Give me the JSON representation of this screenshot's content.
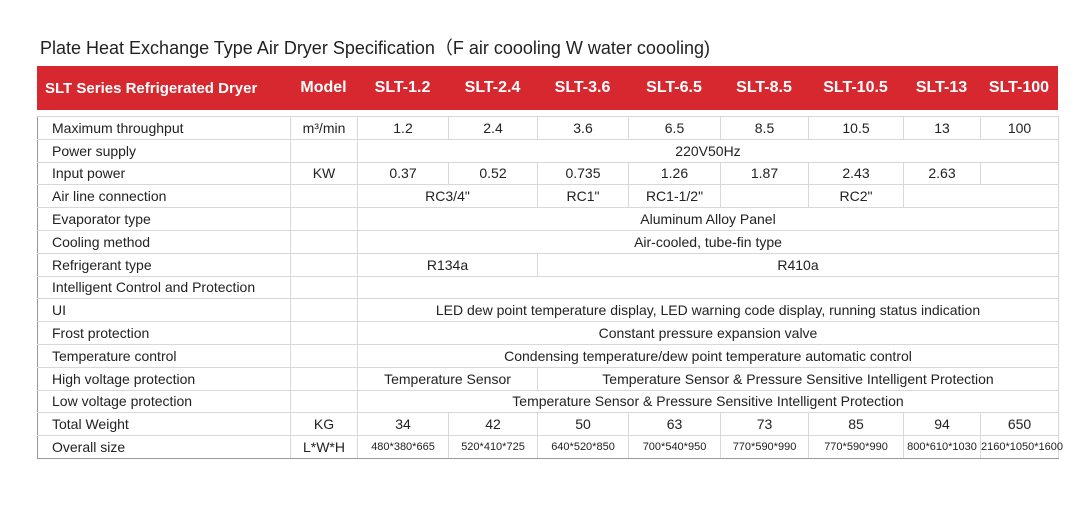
{
  "title": "Plate Heat Exchange Type Air Dryer Specification（F air coooling  W water coooling)",
  "header": {
    "series": "SLT Series Refrigerated Dryer",
    "model": "Model",
    "models": [
      "SLT-1.2",
      "SLT-2.4",
      "SLT-3.6",
      "SLT-6.5",
      "SLT-8.5",
      "SLT-10.5",
      "SLT-13",
      "SLT-100"
    ]
  },
  "rows": [
    {
      "label": "Maximum throughput",
      "unit": "m³/min",
      "cells": [
        "1.2",
        "2.4",
        "3.6",
        "6.5",
        "8.5",
        "10.5",
        "13",
        "100"
      ]
    },
    {
      "label": "Power supply",
      "cells": [
        "220V50Hz"
      ]
    },
    {
      "label": "Input power",
      "unit": "KW",
      "cells": [
        "0.37",
        "0.52",
        "0.735",
        "1.26",
        "1.87",
        "2.43",
        "2.63"
      ]
    },
    {
      "label": "Air line connection",
      "cells": [
        "RC3/4\"",
        "RC1\"",
        "RC1-1/2\"",
        "RC2\""
      ]
    },
    {
      "label": "Evaporator type",
      "cells": [
        "Aluminum Alloy Panel"
      ]
    },
    {
      "label": "Cooling method",
      "cells": [
        "Air-cooled, tube-fin type"
      ]
    },
    {
      "label": "Refrigerant type",
      "cells": [
        "R134a",
        "R410a"
      ]
    },
    {
      "label": "Intelligent Control and Protection",
      "cells": []
    },
    {
      "label": "UI",
      "cells": [
        "LED dew point temperature display, LED warning code display, running status indication"
      ]
    },
    {
      "label": "Frost protection",
      "cells": [
        "Constant pressure expansion valve"
      ]
    },
    {
      "label": "Temperature control",
      "cells": [
        "Condensing temperature/dew point temperature automatic control"
      ]
    },
    {
      "label": "High voltage protection",
      "cells": [
        "Temperature Sensor",
        "Temperature Sensor & Pressure Sensitive Intelligent Protection"
      ]
    },
    {
      "label": "Low voltage protection",
      "cells": [
        "Temperature Sensor & Pressure Sensitive Intelligent Protection"
      ]
    },
    {
      "label": "Total Weight",
      "unit": "KG",
      "cells": [
        "34",
        "42",
        "50",
        "63",
        "73",
        "85",
        "94",
        "650"
      ]
    },
    {
      "label": "Overall size",
      "unit": "L*W*H",
      "cells": [
        "480*380*665",
        "520*410*725",
        "640*520*850",
        "700*540*950",
        "770*590*990",
        "770*590*990",
        "800*610*1030",
        "2160*1050*1600"
      ]
    }
  ]
}
